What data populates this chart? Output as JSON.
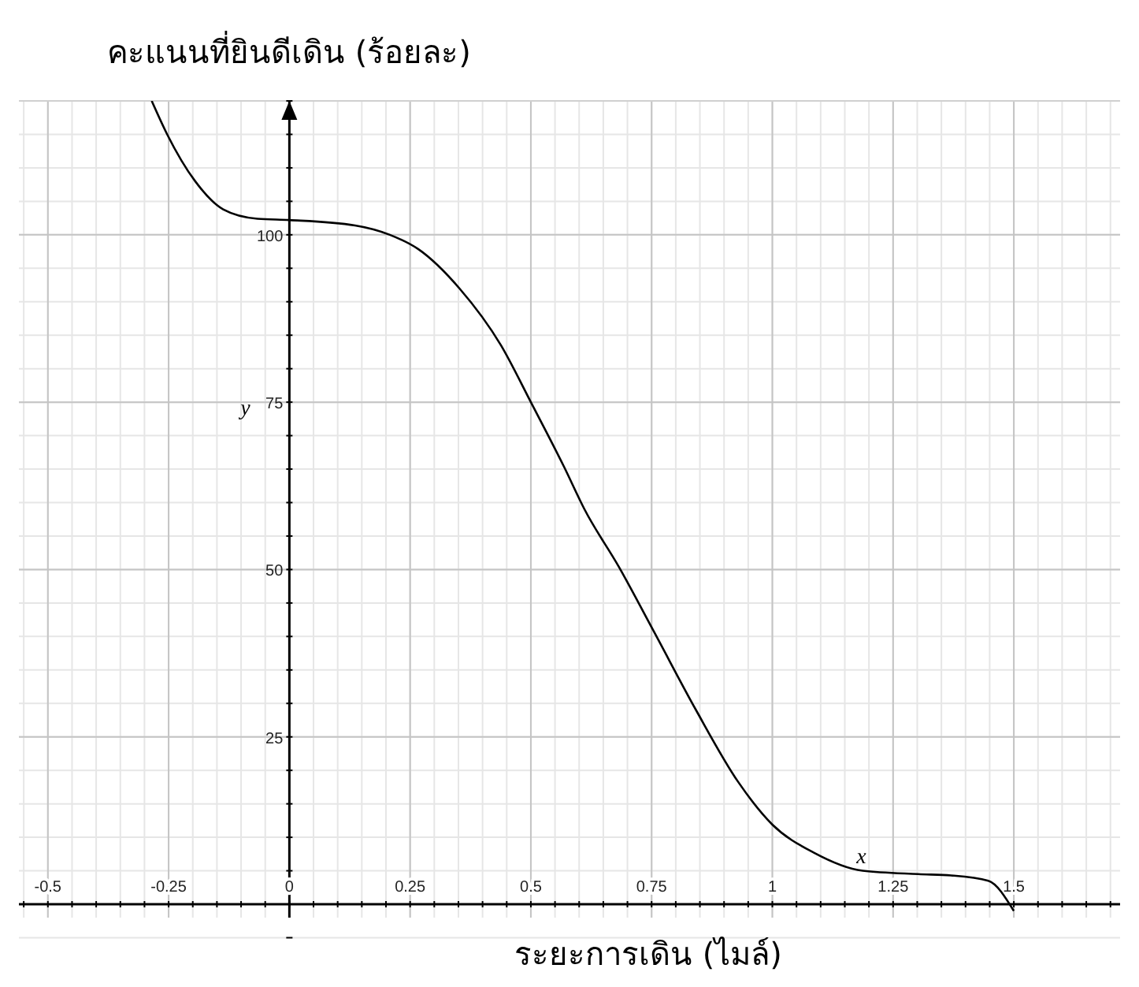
{
  "chart_data": {
    "type": "line",
    "ylabel": "คะแนนที่ยินดีเดิน (ร้อยละ)",
    "xlabel": "ระยะการเดิน (ไมล์)",
    "x": [
      -0.285,
      -0.253,
      -0.195,
      -0.137,
      -0.066,
      0,
      0.136,
      0.208,
      0.266,
      0.352,
      0.438,
      0.5,
      0.569,
      0.611,
      0.683,
      0.755,
      0.842,
      0.929,
      1.0,
      1.086,
      1.187,
      1.302,
      1.37,
      1.447,
      1.5
    ],
    "series": [
      {
        "color": "#000000",
        "values": [
          120,
          115,
          108,
          103.8,
          102.4,
          102.2,
          101.4,
          100,
          97.9,
          92,
          83.5,
          75,
          65.3,
          59,
          50.3,
          40.7,
          29,
          18.3,
          11.9,
          7.7,
          5,
          4.5,
          4.3,
          3.5,
          -1
        ]
      }
    ],
    "xlim": [
      -0.56,
      1.72
    ],
    "ylim": [
      -2,
      120
    ],
    "xticks": [
      {
        "value": -0.5,
        "label": "-0.5"
      },
      -0.25,
      0,
      0.25,
      0.5,
      0.75,
      1,
      1.25,
      1.5
    ],
    "yticks": [
      25,
      50,
      75,
      100
    ],
    "grid": true,
    "marker": "none",
    "line_style": "solid",
    "annotations": [
      "y",
      "x"
    ]
  }
}
